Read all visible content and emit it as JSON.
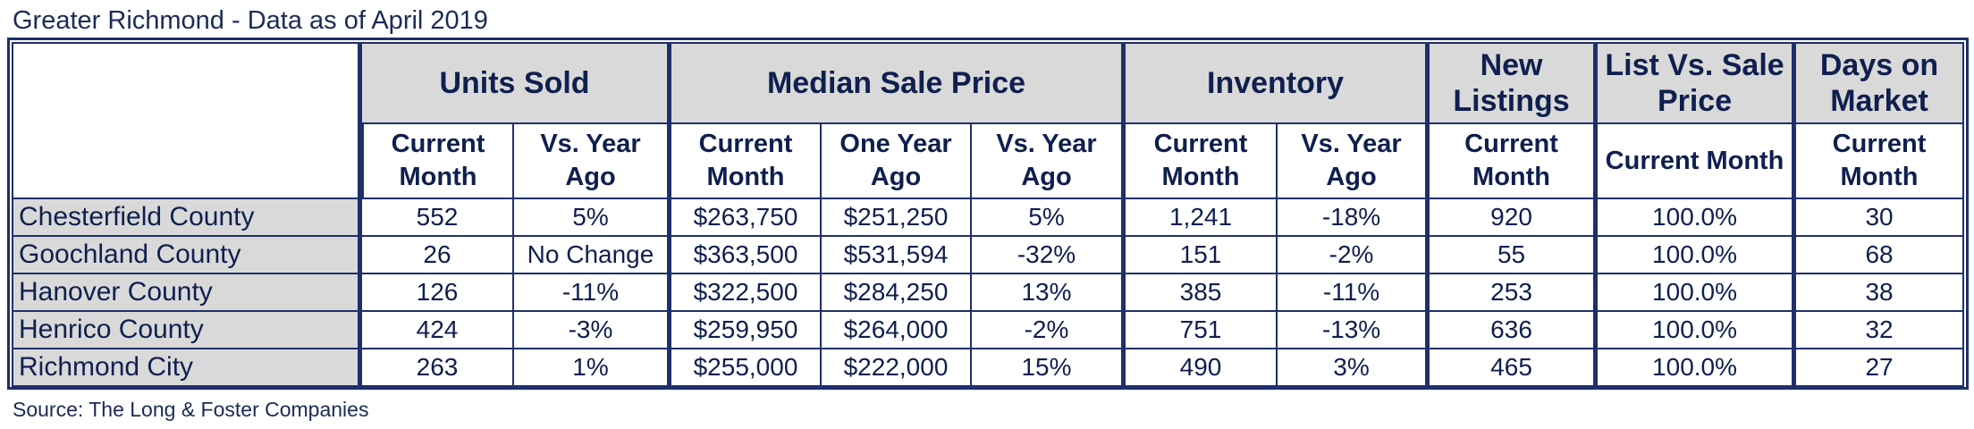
{
  "title": "Greater Richmond - Data as of April 2019",
  "source": "Source: The Long & Foster Companies",
  "colors": {
    "header_fill": "#d9d9d9",
    "border": "#1f2f6b",
    "text": "#1b2b57"
  },
  "groups": {
    "units_sold": "Units Sold",
    "median_sale_price": "Median Sale Price",
    "inventory": "Inventory",
    "new_listings": "New Listings",
    "list_vs_sale": "List Vs. Sale Price",
    "days_on_market": "Days on Market"
  },
  "subheaders": {
    "current_month": "Current Month",
    "vs_year_ago": "Vs. Year Ago",
    "one_year_ago": "One Year Ago"
  },
  "rows": [
    {
      "area": "Chesterfield County",
      "units_current": "552",
      "units_vs": "5%",
      "price_current": "$263,750",
      "price_year_ago": "$251,250",
      "price_vs": "5%",
      "inv_current": "1,241",
      "inv_vs": "-18%",
      "new_listings": "920",
      "list_vs_sale": "100.0%",
      "dom": "30"
    },
    {
      "area": "Goochland County",
      "units_current": "26",
      "units_vs": "No Change",
      "price_current": "$363,500",
      "price_year_ago": "$531,594",
      "price_vs": "-32%",
      "inv_current": "151",
      "inv_vs": "-2%",
      "new_listings": "55",
      "list_vs_sale": "100.0%",
      "dom": "68"
    },
    {
      "area": "Hanover County",
      "units_current": "126",
      "units_vs": "-11%",
      "price_current": "$322,500",
      "price_year_ago": "$284,250",
      "price_vs": "13%",
      "inv_current": "385",
      "inv_vs": "-11%",
      "new_listings": "253",
      "list_vs_sale": "100.0%",
      "dom": "38"
    },
    {
      "area": "Henrico County",
      "units_current": "424",
      "units_vs": "-3%",
      "price_current": "$259,950",
      "price_year_ago": "$264,000",
      "price_vs": "-2%",
      "inv_current": "751",
      "inv_vs": "-13%",
      "new_listings": "636",
      "list_vs_sale": "100.0%",
      "dom": "32"
    },
    {
      "area": "Richmond City",
      "units_current": "263",
      "units_vs": "1%",
      "price_current": "$255,000",
      "price_year_ago": "$222,000",
      "price_vs": "15%",
      "inv_current": "490",
      "inv_vs": "3%",
      "new_listings": "465",
      "list_vs_sale": "100.0%",
      "dom": "27"
    }
  ]
}
